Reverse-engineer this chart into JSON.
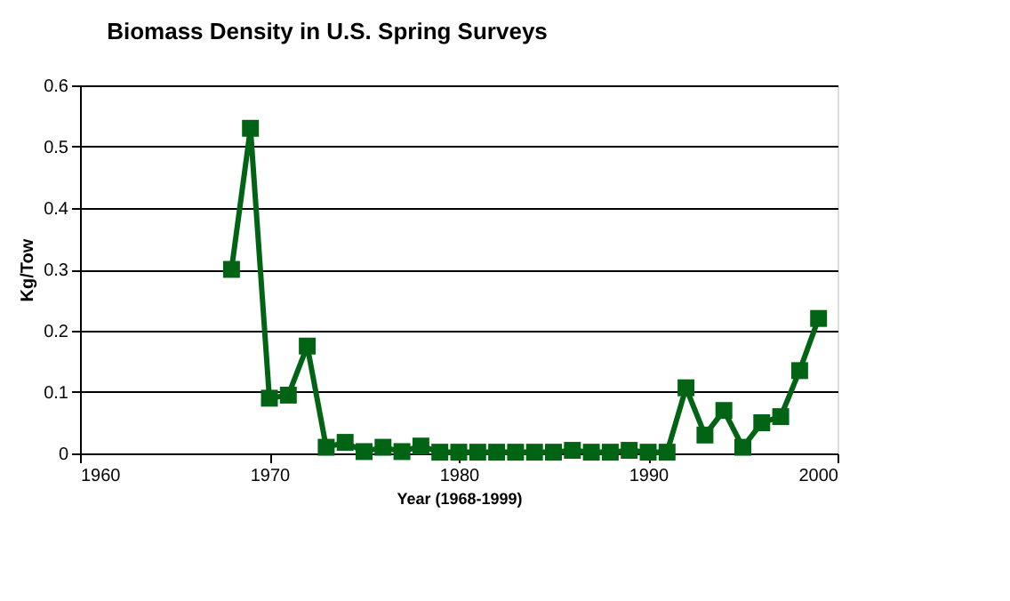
{
  "chart_data": {
    "type": "line",
    "title": "Biomass Density in U.S. Spring Surveys",
    "xlabel": "Year (1968-1999)",
    "ylabel": "Kg/Tow",
    "x": [
      1968,
      1969,
      1970,
      1971,
      1972,
      1973,
      1974,
      1975,
      1976,
      1977,
      1978,
      1979,
      1980,
      1981,
      1982,
      1983,
      1984,
      1985,
      1986,
      1987,
      1988,
      1989,
      1990,
      1991,
      1992,
      1993,
      1994,
      1995,
      1996,
      1997,
      1998,
      1999
    ],
    "series": [
      {
        "color": "#006414",
        "values": [
          0.3,
          0.53,
          0.09,
          0.095,
          0.175,
          0.01,
          0.018,
          0.003,
          0.01,
          0.003,
          0.012,
          0.002,
          0.002,
          0.002,
          0.002,
          0.002,
          0.002,
          0.002,
          0.005,
          0.002,
          0.002,
          0.005,
          0.002,
          0.002,
          0.107,
          0.03,
          0.07,
          0.01,
          0.05,
          0.06,
          0.135,
          0.22
        ]
      }
    ],
    "xlim": [
      1960,
      2000
    ],
    "xticks": [
      1960,
      1970,
      1980,
      1990,
      2000
    ],
    "ylim": [
      0,
      0.6
    ],
    "yticks": [
      0,
      0.1,
      0.2,
      0.3,
      0.4,
      0.5,
      0.6
    ],
    "grid": "y",
    "marker": "square",
    "line_style": "solid"
  }
}
